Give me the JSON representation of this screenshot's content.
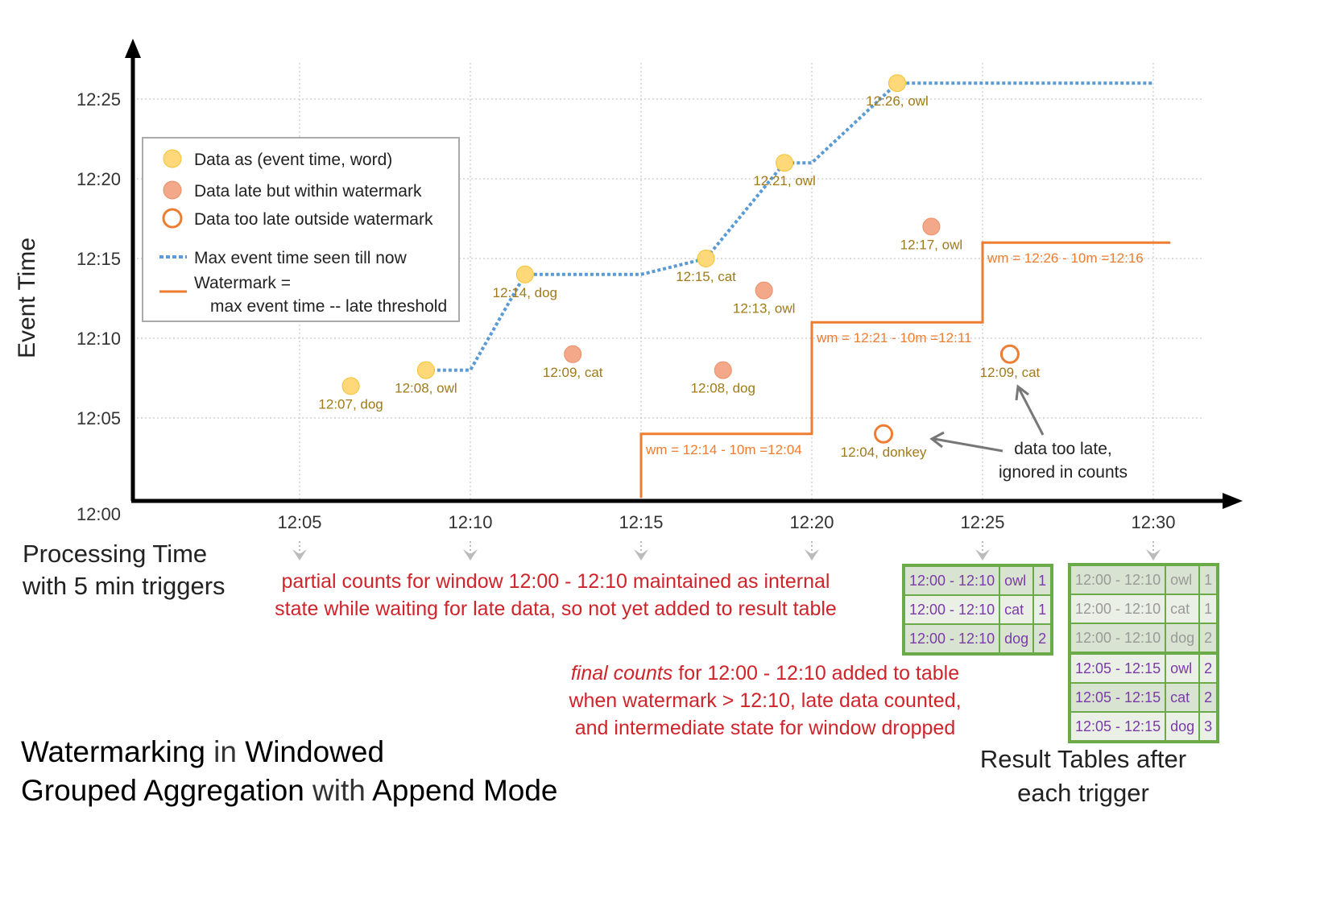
{
  "chart_data": {
    "type": "scatter",
    "xlabel": "Processing Time",
    "xlabel2": "with 5 min triggers",
    "ylabel": "Event Time",
    "x_ticks": [
      "12:05",
      "12:10",
      "12:15",
      "12:20",
      "12:25",
      "12:30"
    ],
    "y_ticks": [
      "12:00",
      "12:05",
      "12:10",
      "12:15",
      "12:20",
      "12:25"
    ],
    "grid": true,
    "legend_position": "top-left",
    "colors": {
      "on_time": "#ffd87a",
      "late": "#f4a88a",
      "too_late": "#ed7d31",
      "max_line": "#5b9bd5",
      "watermark": "#ed7d31"
    },
    "points": [
      {
        "label": "12:07, dog",
        "type": "on_time",
        "x": 6.5,
        "y": 7
      },
      {
        "label": "12:08, owl",
        "type": "on_time",
        "x": 8.7,
        "y": 8
      },
      {
        "label": "12:14, dog",
        "type": "on_time",
        "x": 11.6,
        "y": 14
      },
      {
        "label": "12:09, cat",
        "type": "late",
        "x": 13.0,
        "y": 9
      },
      {
        "label": "12:15, cat",
        "type": "on_time",
        "x": 16.9,
        "y": 15
      },
      {
        "label": "12:08, dog",
        "type": "late",
        "x": 17.4,
        "y": 8
      },
      {
        "label": "12:13, owl",
        "type": "late",
        "x": 18.6,
        "y": 13
      },
      {
        "label": "12:21, owl",
        "type": "on_time",
        "x": 19.2,
        "y": 21
      },
      {
        "label": "12:04, donkey",
        "type": "too_late",
        "x": 22.1,
        "y": 4
      },
      {
        "label": "12:26, owl",
        "type": "on_time",
        "x": 22.5,
        "y": 26
      },
      {
        "label": "12:17, owl",
        "type": "late",
        "x": 23.5,
        "y": 17
      },
      {
        "label": "12:09, cat",
        "type": "too_late",
        "x": 25.8,
        "y": 9
      }
    ],
    "max_event_time": [
      [
        8.7,
        8
      ],
      [
        10,
        8
      ],
      [
        11.6,
        14
      ],
      [
        15,
        14
      ],
      [
        16.9,
        15
      ],
      [
        19.2,
        21
      ],
      [
        20,
        21
      ],
      [
        22.5,
        26
      ],
      [
        30,
        26
      ]
    ],
    "watermark": [
      [
        15,
        0
      ],
      [
        15,
        4
      ],
      [
        20,
        4
      ],
      [
        20,
        11
      ],
      [
        25,
        11
      ],
      [
        25,
        16
      ],
      [
        30.5,
        16
      ]
    ],
    "watermark_labels": [
      "wm = 12:14 - 10m =12:04",
      "wm = 12:21 - 10m =12:11",
      "wm = 12:26 - 10m =12:16"
    ],
    "legend": [
      "Data as (event time, word)",
      "Data late but within watermark",
      "Data too late outside watermark",
      "Max event time seen till now",
      "Watermark =",
      "max event time -- late threshold"
    ]
  },
  "annotations": {
    "too_late": [
      "data too late,",
      "ignored in counts"
    ],
    "partial": [
      "partial counts for window 12:00 - 12:10 maintained as internal",
      "state while waiting for late data, so not yet added  to result table"
    ],
    "final_em": "final counts",
    "final": [
      " for 12:00 - 12:10 added to table",
      "when watermark > 12:10, late data counted,",
      "and intermediate state for window dropped"
    ],
    "result_tables": [
      "Result Tables after",
      "each trigger"
    ]
  },
  "title": {
    "w1": "Watermarking",
    "t1": " in ",
    "w2": "Windowed",
    "w3": "Grouped Aggregation",
    "t2": " with ",
    "w4": "Append Mode"
  },
  "tables": [
    {
      "rows": [
        [
          "12:00 - 12:10",
          "owl",
          "1"
        ],
        [
          "12:00 - 12:10",
          "cat",
          "1"
        ],
        [
          "12:00 - 12:10",
          "dog",
          "2"
        ]
      ]
    },
    {
      "rows": [
        [
          "12:00 - 12:10",
          "owl",
          "1"
        ],
        [
          "12:00 - 12:10",
          "cat",
          "1"
        ],
        [
          "12:00 - 12:10",
          "dog",
          "2"
        ],
        [
          "12:05 - 12:15",
          "owl",
          "2"
        ],
        [
          "12:05 - 12:15",
          "cat",
          "2"
        ],
        [
          "12:05 - 12:15",
          "dog",
          "3"
        ]
      ]
    }
  ]
}
